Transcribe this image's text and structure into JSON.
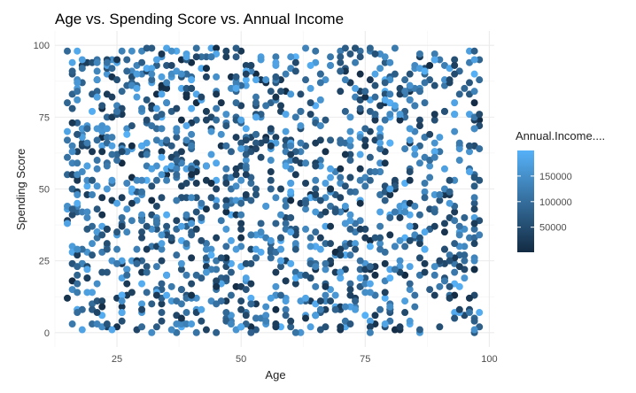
{
  "chart_data": {
    "type": "scatter",
    "title": "Age vs. Spending Score vs. Annual Income",
    "xlabel": "Age",
    "ylabel": "Spending Score",
    "xlim": [
      12.5,
      101
    ],
    "ylim": [
      -5,
      105
    ],
    "x_ticks": [
      25,
      50,
      75,
      100
    ],
    "y_ticks": [
      0,
      25,
      50,
      75,
      100
    ],
    "grid": true,
    "legend": {
      "title": "Annual.Income....",
      "placement": "right",
      "type": "colorbar",
      "range": [
        1000,
        200000
      ],
      "ticks": [
        50000,
        100000,
        150000
      ],
      "tick_labels": [
        "50000",
        "100000",
        "150000"
      ],
      "color_low": "#132b43",
      "color_high": "#56b1f7"
    },
    "point_color_low": "#132b43",
    "point_color_high": "#56b1f7",
    "approx_point_count": 1500,
    "x_range_data": [
      15,
      98
    ],
    "y_range_data": [
      0,
      99
    ],
    "income_range_data": [
      1000,
      200000
    ]
  }
}
